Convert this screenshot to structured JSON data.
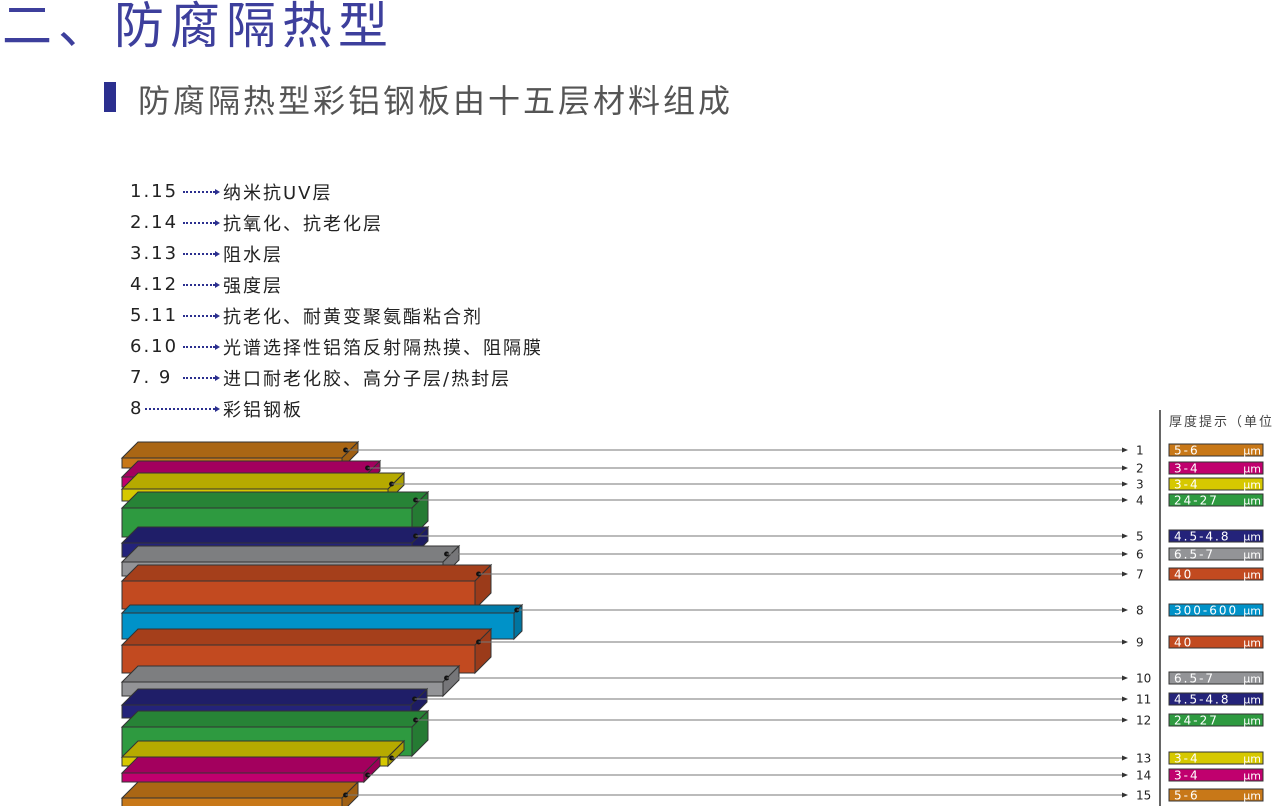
{
  "title": "二、防腐隔热型",
  "subtitle": "防腐隔热型彩铝钢板由十五层材料组成",
  "list": [
    {
      "num": "1.15",
      "label": "纳米抗UV层"
    },
    {
      "num": "2.14",
      "label": "抗氧化、抗老化层"
    },
    {
      "num": "3.13",
      "label": "阻水层"
    },
    {
      "num": "4.12",
      "label": "强度层"
    },
    {
      "num": "5.11",
      "label": "抗老化、耐黄变聚氨酯粘合剂"
    },
    {
      "num": "6.10",
      "label": "光谱选择性铝箔反射隔热摸、阻隔膜"
    },
    {
      "num": "7.  9",
      "label": "进口耐老化胶、高分子层/热封层"
    },
    {
      "num": "8",
      "label": "彩铝钢板"
    }
  ],
  "legend_header": "厚度提示（单位",
  "unit": "μm",
  "layers": [
    {
      "number": "1",
      "thickness": "5-6",
      "color": "#c87818"
    },
    {
      "number": "2",
      "thickness": "3-4",
      "color": "#c0006e"
    },
    {
      "number": "3",
      "thickness": "3-4",
      "color": "#d6c800"
    },
    {
      "number": "4",
      "thickness": "24-27",
      "color": "#2e9a40"
    },
    {
      "number": "5",
      "thickness": "4.5-4.8",
      "color": "#24237a"
    },
    {
      "number": "6",
      "thickness": "6.5-7",
      "color": "#939497"
    },
    {
      "number": "7",
      "thickness": "40",
      "color": "#c24a20"
    },
    {
      "number": "8",
      "thickness": "300-600",
      "color": "#0092c8"
    },
    {
      "number": "9",
      "thickness": "40",
      "color": "#c24a20"
    },
    {
      "number": "10",
      "thickness": "6.5-7",
      "color": "#939497"
    },
    {
      "number": "11",
      "thickness": "4.5-4.8",
      "color": "#24237a"
    },
    {
      "number": "12",
      "thickness": "24-27",
      "color": "#2e9a40"
    },
    {
      "number": "13",
      "thickness": "3-4",
      "color": "#d6c800"
    },
    {
      "number": "14",
      "thickness": "3-4",
      "color": "#c0006e"
    },
    {
      "number": "15",
      "thickness": "5-6",
      "color": "#c87818"
    }
  ]
}
